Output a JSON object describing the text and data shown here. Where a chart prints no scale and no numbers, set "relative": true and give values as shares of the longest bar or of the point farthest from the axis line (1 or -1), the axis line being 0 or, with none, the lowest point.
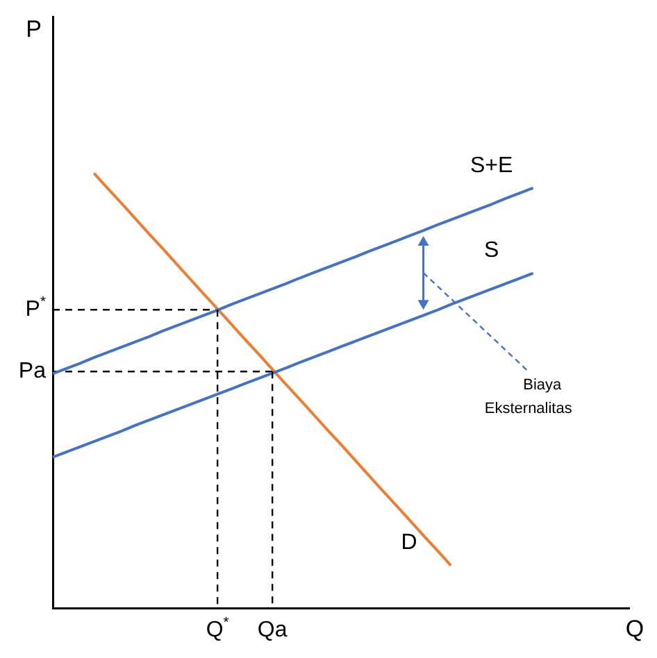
{
  "chart_data": {
    "type": "line",
    "relative": true,
    "grid": false,
    "legend": false,
    "marker": "none",
    "categories": [
      null,
      null,
      null,
      null,
      null,
      null,
      null,
      null,
      null,
      null,
      null,
      null,
      null,
      null,
      null,
      null,
      null,
      null,
      null,
      null,
      null,
      null,
      null,
      null,
      null,
      null,
      null,
      null,
      null,
      null,
      null,
      null,
      null,
      null,
      null,
      null,
      null,
      null,
      null,
      null,
      null,
      null,
      null
    ],
    "series": [
      {
        "name": "S+E",
        "color": "#4472c4",
        "values": [
          0.539,
          0.551,
          0.563,
          0.576,
          0.588,
          0.6,
          0.612,
          0.624,
          0.637,
          0.649,
          0.661,
          0.673,
          0.685,
          0.698,
          0.71,
          0.722,
          0.734,
          0.746,
          0.759,
          0.771,
          0.783,
          0.795,
          0.807,
          0.82,
          0.832,
          0.844,
          0.856,
          0.868,
          0.881,
          0.893,
          0.905,
          0.917,
          0.929,
          0.942,
          0.954,
          0.966,
          null,
          null,
          null,
          null,
          null,
          null,
          null
        ]
      },
      {
        "name": "S",
        "color": "#4472c4",
        "values": [
          0.347,
          0.359,
          0.371,
          0.383,
          0.395,
          0.407,
          0.42,
          0.432,
          0.444,
          0.456,
          0.468,
          0.48,
          0.492,
          0.504,
          0.516,
          0.528,
          0.54,
          0.552,
          0.565,
          0.577,
          0.589,
          0.601,
          0.613,
          0.625,
          0.637,
          0.649,
          0.661,
          0.673,
          0.685,
          0.698,
          0.71,
          0.722,
          0.734,
          0.746,
          0.758,
          0.77,
          null,
          null,
          null,
          null,
          null,
          null,
          null
        ]
      },
      {
        "name": "D",
        "color": "#ed7d31",
        "values": [
          null,
          null,
          null,
          1,
          0.965,
          0.931,
          0.896,
          0.861,
          0.827,
          0.792,
          0.757,
          0.722,
          0.688,
          0.653,
          0.618,
          0.584,
          0.549,
          0.514,
          0.48,
          0.445,
          0.41,
          0.376,
          0.341,
          0.306,
          0.271,
          0.237,
          0.202,
          0.167,
          0.133,
          0.098,
          null,
          null,
          null,
          null,
          null,
          null,
          null,
          null,
          null,
          null,
          null,
          null,
          null
        ]
      },
      {
        "color": "#000000",
        "line_style": "dashed",
        "values": [
          0.686,
          0.686,
          0.686,
          0.686,
          0.686,
          0.686,
          0.686,
          0.686,
          0.686,
          0.686,
          0.686,
          0.686,
          0.686,
          null,
          null,
          null,
          null,
          null,
          null,
          null,
          null,
          null,
          null,
          null,
          null,
          null,
          null,
          null,
          null,
          null,
          null,
          null,
          null,
          null,
          null,
          null,
          null,
          null,
          null,
          null,
          null,
          null,
          null
        ]
      },
      {
        "color": "#000000",
        "line_style": "dashed",
        "values": [
          0.544,
          0.544,
          0.544,
          0.544,
          0.544,
          0.544,
          0.544,
          0.544,
          0.544,
          0.544,
          0.544,
          0.544,
          0.544,
          0.544,
          0.544,
          0.544,
          0.544,
          null,
          null,
          null,
          null,
          null,
          null,
          null,
          null,
          null,
          null,
          null,
          null,
          null,
          null,
          null,
          null,
          null,
          null,
          null,
          null,
          null,
          null,
          null,
          null,
          null,
          null
        ]
      }
    ],
    "annotations": [
      "P",
      "Q",
      "P$^{*}$",
      "Pa",
      "Q$^{*}$",
      "Qa",
      "Biaya Eksternalitas"
    ]
  }
}
